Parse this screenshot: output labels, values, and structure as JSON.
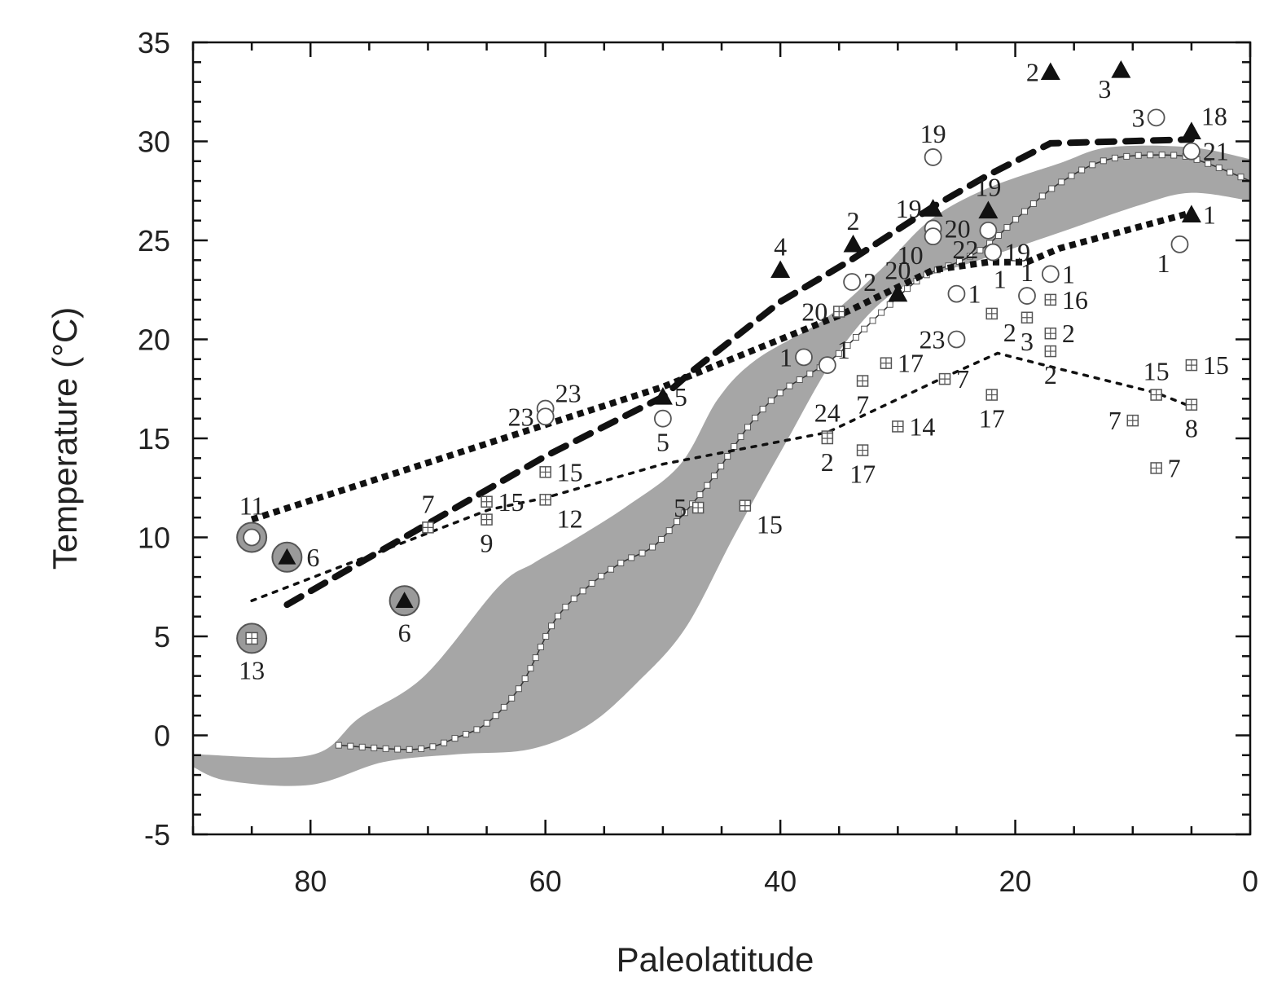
{
  "chart_data": {
    "type": "scatter",
    "title": "",
    "xlabel": "Paleolatitude",
    "ylabel": "Temperature (°C)",
    "xlim": [
      90,
      0
    ],
    "x_reversed": true,
    "ylim": [
      -5,
      35
    ],
    "x_ticks": [
      80,
      60,
      40,
      20,
      0
    ],
    "y_ticks": [
      -5,
      0,
      5,
      10,
      15,
      20,
      25,
      30,
      35
    ],
    "grid": false,
    "colors": {
      "band": "#a6a6a6",
      "marker": "#111111",
      "ring": "#9a9a9a"
    },
    "band": {
      "upper": [
        [
          90,
          -0.95
        ],
        [
          80,
          -1
        ],
        [
          75.8,
          0.9
        ],
        [
          70.3,
          3
        ],
        [
          64,
          7.5
        ],
        [
          61,
          8.7
        ],
        [
          57.8,
          9.8
        ],
        [
          53,
          11.6
        ],
        [
          48.5,
          13.7
        ],
        [
          45.3,
          17
        ],
        [
          42,
          19
        ],
        [
          36.3,
          21
        ],
        [
          31.5,
          23.5
        ],
        [
          27.3,
          26
        ],
        [
          22.5,
          27.6
        ],
        [
          16.2,
          28.9
        ],
        [
          12,
          29.7
        ],
        [
          5.1,
          29.7
        ],
        [
          0,
          29.1
        ]
      ],
      "lower": [
        [
          0,
          27
        ],
        [
          5,
          27.4
        ],
        [
          9.3,
          26.8
        ],
        [
          16.2,
          25.4
        ],
        [
          23.1,
          24
        ],
        [
          30,
          22.5
        ],
        [
          35,
          19.4
        ],
        [
          39.8,
          14.5
        ],
        [
          44,
          10
        ],
        [
          48.1,
          5.4
        ],
        [
          52.3,
          2.6
        ],
        [
          56.4,
          0.5
        ],
        [
          61.3,
          -0.7
        ],
        [
          67.5,
          -0.95
        ],
        [
          73.8,
          -1.35
        ],
        [
          80,
          -2.5
        ],
        [
          87,
          -2.3
        ],
        [
          90,
          -1.6
        ]
      ]
    },
    "lines": [
      {
        "style": "model-with-squares",
        "points": [
          [
            77.6,
            -0.5
          ],
          [
            71,
            -0.7
          ],
          [
            67.5,
            -0.1
          ],
          [
            64.8,
            0.7
          ],
          [
            62,
            2.6
          ],
          [
            59.2,
            5.8
          ],
          [
            56.4,
            7.5
          ],
          [
            53.6,
            8.7
          ],
          [
            50.9,
            9.5
          ],
          [
            48.8,
            10.8
          ],
          [
            46,
            12.8
          ],
          [
            42.6,
            15.7
          ],
          [
            39.8,
            17.4
          ],
          [
            35.6,
            19
          ],
          [
            31.5,
            21.3
          ],
          [
            28,
            23.1
          ],
          [
            24.5,
            24
          ],
          [
            22.3,
            24.8
          ],
          [
            19.7,
            26.2
          ],
          [
            16.2,
            27.9
          ],
          [
            12,
            29.1
          ],
          [
            6.5,
            29.3
          ],
          [
            3.7,
            28.9
          ],
          [
            0,
            28
          ]
        ]
      },
      {
        "style": "heavy-dashed",
        "points": [
          [
            82,
            6.6
          ],
          [
            60,
            14.1
          ],
          [
            50,
            17.1
          ],
          [
            47.5,
            18.4
          ],
          [
            40,
            21.9
          ],
          [
            34,
            24
          ],
          [
            27,
            26.7
          ],
          [
            22.3,
            28.3
          ],
          [
            17,
            29.9
          ],
          [
            5,
            30.1
          ]
        ]
      },
      {
        "style": "heavy-dotted",
        "points": [
          [
            85,
            10.9
          ],
          [
            50,
            17.6
          ],
          [
            35,
            21.2
          ],
          [
            27,
            23.5
          ],
          [
            22.3,
            23.9
          ],
          [
            19,
            23.9
          ],
          [
            16.2,
            24.6
          ],
          [
            5,
            26.4
          ]
        ]
      },
      {
        "style": "thin-dotted",
        "points": [
          [
            85,
            6.8
          ],
          [
            64.8,
            11.4
          ],
          [
            60,
            12.0
          ],
          [
            50,
            13.7
          ],
          [
            36,
            15.3
          ],
          [
            26,
            18.1
          ],
          [
            21.5,
            19.3
          ],
          [
            16.2,
            18.5
          ],
          [
            8,
            17.3
          ],
          [
            5,
            16.6
          ]
        ]
      }
    ],
    "points": [
      {
        "marker": "triangle",
        "x": 17,
        "y": 33.5,
        "label": "2",
        "side": "left"
      },
      {
        "marker": "triangle",
        "x": 11,
        "y": 33.6,
        "label": "3",
        "side": "left-below"
      },
      {
        "marker": "triangle",
        "x": 5,
        "y": 30.5,
        "label": "18",
        "side": "right-above"
      },
      {
        "marker": "triangle",
        "x": 5,
        "y": 26.3,
        "label": "1",
        "side": "right"
      },
      {
        "marker": "triangle",
        "x": 40,
        "y": 23.5,
        "label": "4",
        "side": "above"
      },
      {
        "marker": "triangle",
        "x": 33.8,
        "y": 24.8,
        "label": "2",
        "side": "above"
      },
      {
        "marker": "triangle",
        "x": 30,
        "y": 22.3,
        "label": "20",
        "side": "above"
      },
      {
        "marker": "triangle",
        "x": 27,
        "y": 26.6,
        "label": "19",
        "side": "left"
      },
      {
        "marker": "triangle",
        "x": 22.3,
        "y": 26.5,
        "label": "19",
        "side": "above"
      },
      {
        "marker": "triangle",
        "x": 50,
        "y": 17.1,
        "label": "5",
        "side": "right"
      },
      {
        "marker": "triangle-ringed",
        "x": 82,
        "y": 9.0,
        "label": "6",
        "side": "right"
      },
      {
        "marker": "triangle-ringed",
        "x": 72,
        "y": 6.8,
        "label": "6",
        "side": "below"
      },
      {
        "marker": "circle",
        "x": 27,
        "y": 29.2,
        "label": "19",
        "side": "above"
      },
      {
        "marker": "circle",
        "x": 8,
        "y": 31.2,
        "label": "3",
        "side": "left"
      },
      {
        "marker": "circle",
        "x": 5,
        "y": 29.5,
        "label": "21",
        "side": "right"
      },
      {
        "marker": "circle",
        "x": 6,
        "y": 24.8,
        "label": "1",
        "side": "left-below"
      },
      {
        "marker": "circle",
        "x": 27,
        "y": 25.6,
        "label": "20",
        "side": "right"
      },
      {
        "marker": "circle",
        "x": 27,
        "y": 25.2,
        "label": "10",
        "side": "left-below"
      },
      {
        "marker": "circle",
        "x": 22.3,
        "y": 25.5,
        "label": "22",
        "side": "left-below"
      },
      {
        "marker": "circle",
        "x": 21.9,
        "y": 24.4,
        "label": "19",
        "side": "right"
      },
      {
        "marker": "circle",
        "x": 33.9,
        "y": 22.9,
        "label": "2",
        "side": "right"
      },
      {
        "marker": "circle",
        "x": 25,
        "y": 22.3,
        "label": "1",
        "side": "right"
      },
      {
        "marker": "circle",
        "x": 17,
        "y": 23.3,
        "label": "1",
        "side": "right"
      },
      {
        "marker": "circle",
        "x": 19,
        "y": 22.2,
        "label": "1",
        "side": "above"
      },
      {
        "marker": "circle",
        "x": 25,
        "y": 20.0,
        "label": "23",
        "side": "left"
      },
      {
        "marker": "circle",
        "x": 38,
        "y": 19.1,
        "label": "1",
        "side": "left"
      },
      {
        "marker": "circle",
        "x": 36,
        "y": 18.7,
        "label": "1",
        "side": "right-above"
      },
      {
        "marker": "circle",
        "x": 50,
        "y": 16.0,
        "label": "5",
        "side": "below"
      },
      {
        "marker": "circle",
        "x": 60,
        "y": 16.5,
        "label": "23",
        "side": "right-above"
      },
      {
        "marker": "circle",
        "x": 60,
        "y": 16.1,
        "label": "23",
        "side": "left"
      },
      {
        "marker": "circle-ringed",
        "x": 85,
        "y": 10.0,
        "label": "11",
        "side": "above"
      },
      {
        "marker": "square",
        "x": 35,
        "y": 21.4,
        "label": "20",
        "side": "left"
      },
      {
        "marker": "square",
        "x": 22,
        "y": 21.3,
        "label": "2",
        "side": "below-right"
      },
      {
        "marker": "square",
        "x": 19,
        "y": 21.1,
        "label": "3",
        "side": "below"
      },
      {
        "marker": "square",
        "x": 17,
        "y": 22.0,
        "label": "16",
        "side": "right"
      },
      {
        "marker": "square",
        "x": 17,
        "y": 20.3,
        "label": "2",
        "side": "right"
      },
      {
        "marker": "square",
        "x": 17,
        "y": 19.4,
        "label": "2",
        "side": "below"
      },
      {
        "marker": "square",
        "x": 31,
        "y": 18.8,
        "label": "17",
        "side": "right"
      },
      {
        "marker": "square",
        "x": 33,
        "y": 17.9,
        "label": "7",
        "side": "below"
      },
      {
        "marker": "square",
        "x": 26,
        "y": 18.0,
        "label": "7",
        "side": "right"
      },
      {
        "marker": "square",
        "x": 22,
        "y": 17.2,
        "label": "17",
        "side": "below"
      },
      {
        "marker": "square",
        "x": 36,
        "y": 15.1,
        "label": "24",
        "side": "above"
      },
      {
        "marker": "square",
        "x": 36,
        "y": 15.0,
        "label": "2",
        "side": "below"
      },
      {
        "marker": "square",
        "x": 30,
        "y": 15.6,
        "label": "14",
        "side": "right"
      },
      {
        "marker": "square",
        "x": 33,
        "y": 14.4,
        "label": "17",
        "side": "below"
      },
      {
        "marker": "square",
        "x": 5,
        "y": 18.7,
        "label": "15",
        "side": "right"
      },
      {
        "marker": "square",
        "x": 8,
        "y": 17.2,
        "label": "15",
        "side": "above"
      },
      {
        "marker": "square",
        "x": 5,
        "y": 16.7,
        "label": "8",
        "side": "below"
      },
      {
        "marker": "square",
        "x": 10,
        "y": 15.9,
        "label": "7",
        "side": "left"
      },
      {
        "marker": "square",
        "x": 8,
        "y": 13.5,
        "label": "7",
        "side": "right"
      },
      {
        "marker": "square",
        "x": 60,
        "y": 13.3,
        "label": "15",
        "side": "right"
      },
      {
        "marker": "square",
        "x": 60,
        "y": 11.9,
        "label": "12",
        "side": "below-right"
      },
      {
        "marker": "square",
        "x": 65,
        "y": 11.8,
        "label": "15",
        "side": "right"
      },
      {
        "marker": "square",
        "x": 65,
        "y": 10.9,
        "label": "9",
        "side": "below"
      },
      {
        "marker": "square",
        "x": 70,
        "y": 10.5,
        "label": "7",
        "side": "above"
      },
      {
        "marker": "square",
        "x": 47,
        "y": 11.5,
        "label": "5",
        "side": "left"
      },
      {
        "marker": "square",
        "x": 43,
        "y": 11.6,
        "label": "15",
        "side": "below-right"
      },
      {
        "marker": "square-ringed",
        "x": 85,
        "y": 4.9,
        "label": "13",
        "side": "below"
      }
    ],
    "annotations": [
      {
        "text": "1",
        "x": 21.3,
        "y": 22.6
      }
    ]
  }
}
